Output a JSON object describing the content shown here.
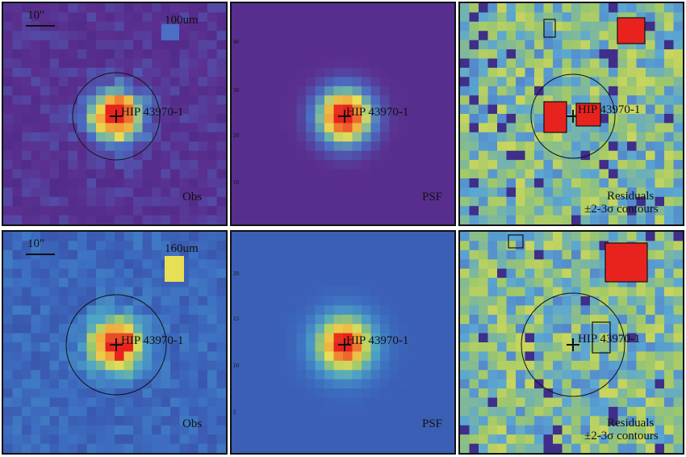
{
  "figure": {
    "rows": [
      {
        "band": "100um",
        "scale_label": "10\"",
        "panels": [
          {
            "kind": "obs",
            "label": "Obs",
            "source": "HIP 43970-1",
            "map": "purple"
          },
          {
            "kind": "psf",
            "label": "PSF",
            "source": "HIP 43970-1",
            "map": "purple"
          },
          {
            "kind": "residual",
            "label_line1": "Residuals",
            "label_line2": "±2-3σ contours",
            "source": "HIP 43970-1",
            "map": "residual"
          }
        ],
        "axis_ticks": [
          "40",
          "30",
          "20",
          "10"
        ]
      },
      {
        "band": "160um",
        "scale_label": "10\"",
        "panels": [
          {
            "kind": "obs",
            "label": "Obs",
            "source": "HIP 43970-1",
            "map": "blue"
          },
          {
            "kind": "psf",
            "label": "PSF",
            "source": "HIP 43970-1",
            "map": "blue"
          },
          {
            "kind": "residual",
            "label_line1": "Residuals",
            "label_line2": "±2-3σ contours",
            "source": "HIP 43970-1",
            "map": "residual"
          }
        ],
        "axis_ticks": [
          "20",
          "15",
          "10",
          "5"
        ]
      }
    ],
    "colors": {
      "purple_bg": "#5a2f8f",
      "blue_bg": "#3d70c2",
      "hot": "#e8231e",
      "warm": "#f2a13a",
      "yellow": "#e7df55",
      "residual_bg": "#9fc86a"
    }
  }
}
